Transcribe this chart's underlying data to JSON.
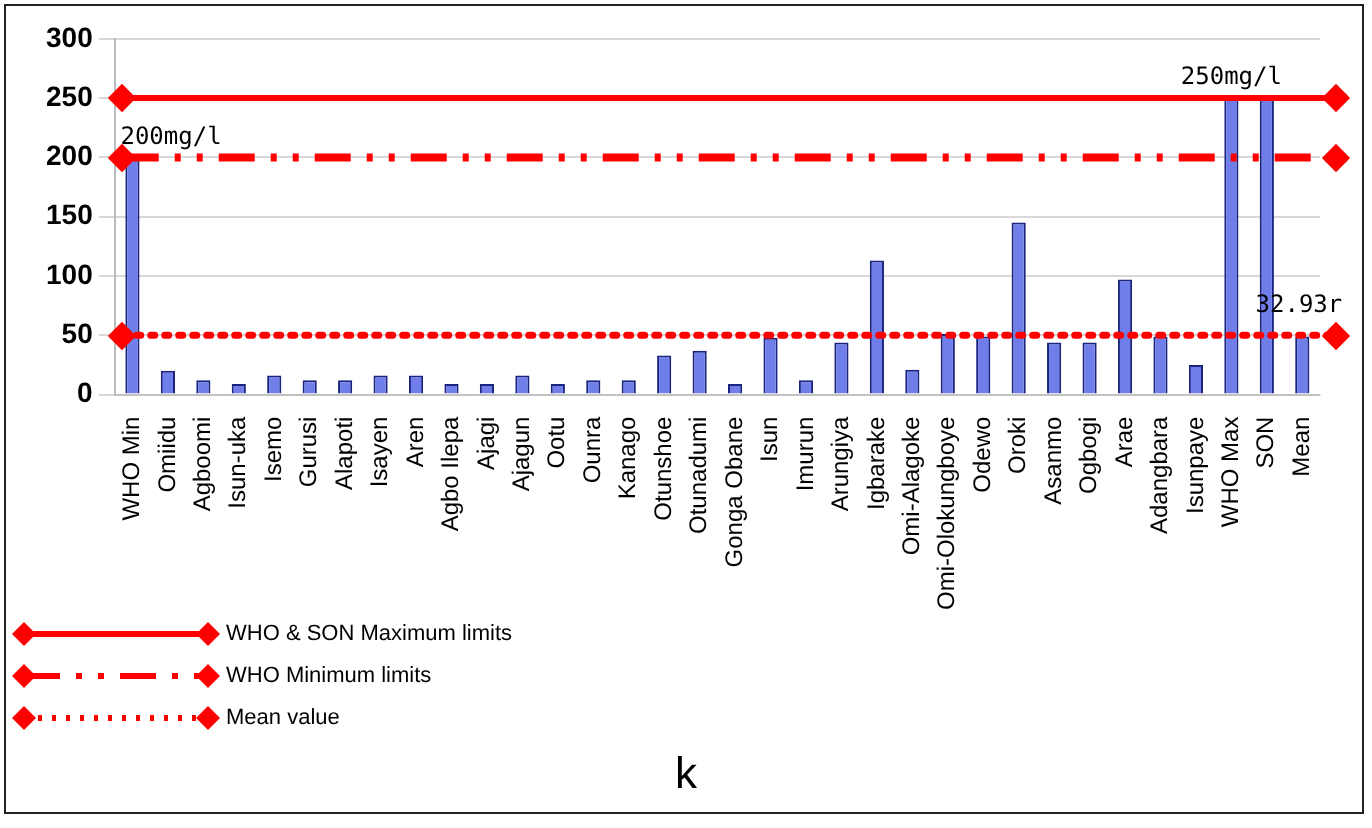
{
  "chart_data": {
    "type": "bar",
    "categories": [
      "WHO Min",
      "Omiidu",
      "Agboomi",
      "Isun-uka",
      "Isemo",
      "Gurusi",
      "Alapoti",
      "Isayen",
      "Aren",
      "Agbo Ilepa",
      "Ajagi",
      "Ajagun",
      "Ootu",
      "Ounra",
      "Kanago",
      "Otunshoe",
      "Otunadumi",
      "Gonga Obane",
      "Isun",
      "Imurun",
      "Arungiya",
      "Igbarake",
      "Omi-Alagoke",
      "Omi-Olokungboye",
      "Odewo",
      "Oroki",
      "Asanmo",
      "Ogbogi",
      "Arae",
      "Adangbara",
      "Isunpaye",
      "WHO Max",
      "SON",
      "Mean"
    ],
    "values": [
      200,
      20,
      12,
      9,
      16,
      12,
      12,
      16,
      16,
      9,
      9,
      16,
      9,
      12,
      12,
      33,
      37,
      9,
      48,
      12,
      44,
      113,
      21,
      51,
      49,
      145,
      44,
      44,
      97,
      49,
      25,
      250,
      250,
      49
    ],
    "color": "#6f7ee8",
    "ylim": [
      0,
      300
    ],
    "yticks": [
      0,
      50,
      100,
      150,
      200,
      250,
      300
    ],
    "grid": "y",
    "ref_lines": [
      {
        "axis": "y",
        "value": 250,
        "label": "WHO & SON Maximum limits",
        "color": "#ff0000",
        "line_style": "solid"
      },
      {
        "axis": "y",
        "value": 200,
        "label": "WHO Minimum limits",
        "color": "#ff0000",
        "line_style": "dashdot"
      },
      {
        "axis": "y",
        "value": 50,
        "label": "Mean value",
        "color": "#ff0000",
        "line_style": "dotted"
      }
    ],
    "legend": "bottom left",
    "annotations": [
      {
        "text": "200mg/l",
        "x": "WHO Min",
        "y": 200
      },
      {
        "text": "250mg/l",
        "x": "WHO Max",
        "y": 250
      },
      {
        "text": "32.93r",
        "x": "Mean",
        "y": 50
      },
      "k"
    ]
  }
}
